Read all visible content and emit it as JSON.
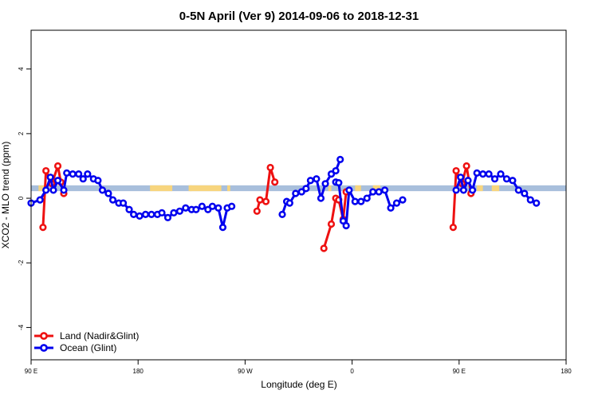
{
  "chart_data": {
    "type": "line",
    "title": "0-5N April (Ver 9)   2014-09-06 to 2018-12-31",
    "xlabel": "Longitude (deg E)",
    "ylabel": "XCO2 - MLO trend (ppm)",
    "xlim": [
      -90,
      270
    ],
    "ylim": [
      -5,
      5.2
    ],
    "x_ticks": [
      -90,
      -18,
      54,
      126,
      198,
      270
    ],
    "x_tick_labels": [
      "90 E",
      "180",
      "90 W",
      "0",
      "90 E",
      "180"
    ],
    "y_ticks": [
      -4,
      -2,
      0,
      2,
      4
    ],
    "y_tick_labels": [
      "-4",
      "-2",
      "0",
      "2",
      "4"
    ],
    "grid": false,
    "legend": "bottom-left",
    "background_band": {
      "y_range": [
        0.22,
        0.4
      ],
      "default_color": "#a8bfdc",
      "segments": [
        {
          "x": [
            -85,
            -80
          ],
          "color": "#f7d57e"
        },
        {
          "x": [
            -10,
            5
          ],
          "color": "#f7d57e"
        },
        {
          "x": [
            16,
            18
          ],
          "color": "#f7d57e"
        },
        {
          "x": [
            17,
            38
          ],
          "color": "#f7d57e"
        },
        {
          "x": [
            42,
            44
          ],
          "color": "#f7d57e"
        },
        {
          "x": [
            110,
            112
          ],
          "color": "#f7d57e"
        },
        {
          "x": [
            128,
            132
          ],
          "color": "#f7d57e"
        },
        {
          "x": [
            140,
            145
          ],
          "color": "#f7d57e"
        },
        {
          "x": [
            210,
            214
          ],
          "color": "#f7d57e"
        },
        {
          "x": [
            220,
            225
          ],
          "color": "#f7d57e"
        }
      ]
    },
    "series": [
      {
        "name": "Land (Nadir&Glint)",
        "color": "#ee1111",
        "segments": [
          [
            [
              -82,
              -0.9
            ],
            [
              -80,
              0.85
            ],
            [
              -76,
              0.45
            ],
            [
              -72,
              1.0
            ],
            [
              -70,
              0.5
            ],
            [
              -68,
              0.15
            ]
          ],
          [
            [
              62,
              -0.4
            ],
            [
              64,
              -0.05
            ],
            [
              68,
              -0.1
            ],
            [
              71,
              0.95
            ],
            [
              74,
              0.5
            ]
          ],
          [
            [
              107,
              -1.55
            ],
            [
              112,
              -0.8
            ],
            [
              115,
              0.0
            ],
            [
              117,
              -0.05
            ],
            [
              120,
              -0.65
            ],
            [
              122,
              0.2
            ]
          ],
          [
            [
              194,
              -0.9
            ],
            [
              196,
              0.85
            ],
            [
              200,
              0.45
            ],
            [
              203,
              1.0
            ],
            [
              206,
              0.15
            ]
          ]
        ]
      },
      {
        "name": "Ocean (Glint)",
        "color": "#0000ee",
        "segments": [
          [
            [
              -90,
              -0.15
            ],
            [
              -84,
              -0.05
            ],
            [
              -80,
              0.25
            ],
            [
              -77,
              0.65
            ],
            [
              -75,
              0.25
            ],
            [
              -72,
              0.55
            ],
            [
              -68,
              0.25
            ],
            [
              -66,
              0.78
            ],
            [
              -62,
              0.75
            ],
            [
              -58,
              0.75
            ],
            [
              -55,
              0.6
            ],
            [
              -52,
              0.75
            ],
            [
              -48,
              0.6
            ],
            [
              -45,
              0.55
            ],
            [
              -42,
              0.25
            ],
            [
              -38,
              0.15
            ],
            [
              -35,
              -0.05
            ],
            [
              -31,
              -0.15
            ],
            [
              -28,
              -0.15
            ],
            [
              -24,
              -0.35
            ],
            [
              -21,
              -0.5
            ],
            [
              -17,
              -0.55
            ],
            [
              -13,
              -0.5
            ],
            [
              -9,
              -0.5
            ],
            [
              -5,
              -0.5
            ],
            [
              -2,
              -0.45
            ],
            [
              2,
              -0.6
            ],
            [
              6,
              -0.45
            ],
            [
              10,
              -0.4
            ],
            [
              14,
              -0.3
            ],
            [
              18,
              -0.35
            ],
            [
              21,
              -0.35
            ],
            [
              25,
              -0.25
            ],
            [
              29,
              -0.35
            ],
            [
              32,
              -0.25
            ],
            [
              36,
              -0.3
            ],
            [
              39,
              -0.9
            ],
            [
              42,
              -0.3
            ],
            [
              45,
              -0.25
            ]
          ],
          [
            [
              79,
              -0.5
            ],
            [
              82,
              -0.1
            ],
            [
              84,
              -0.15
            ],
            [
              88,
              0.15
            ],
            [
              92,
              0.2
            ],
            [
              95,
              0.3
            ],
            [
              98,
              0.55
            ],
            [
              102,
              0.6
            ],
            [
              105,
              0.0
            ],
            [
              108,
              0.45
            ],
            [
              112,
              0.75
            ],
            [
              115,
              0.85
            ],
            [
              118,
              1.2
            ]
          ],
          [
            [
              115,
              0.5
            ],
            [
              117,
              0.48
            ],
            [
              120,
              -0.7
            ],
            [
              122,
              -0.85
            ],
            [
              124,
              0.25
            ],
            [
              128,
              -0.1
            ],
            [
              132,
              -0.1
            ],
            [
              136,
              0.0
            ],
            [
              140,
              0.2
            ],
            [
              144,
              0.2
            ],
            [
              148,
              0.25
            ],
            [
              152,
              -0.3
            ],
            [
              156,
              -0.15
            ],
            [
              160,
              -0.05
            ]
          ],
          [
            [
              196,
              0.25
            ],
            [
              199,
              0.65
            ],
            [
              201,
              0.25
            ],
            [
              204,
              0.55
            ],
            [
              207,
              0.25
            ],
            [
              210,
              0.78
            ],
            [
              214,
              0.75
            ],
            [
              218,
              0.75
            ],
            [
              222,
              0.6
            ],
            [
              226,
              0.75
            ],
            [
              230,
              0.6
            ],
            [
              234,
              0.55
            ],
            [
              238,
              0.25
            ],
            [
              242,
              0.15
            ],
            [
              246,
              -0.05
            ],
            [
              250,
              -0.15
            ]
          ]
        ]
      }
    ]
  }
}
